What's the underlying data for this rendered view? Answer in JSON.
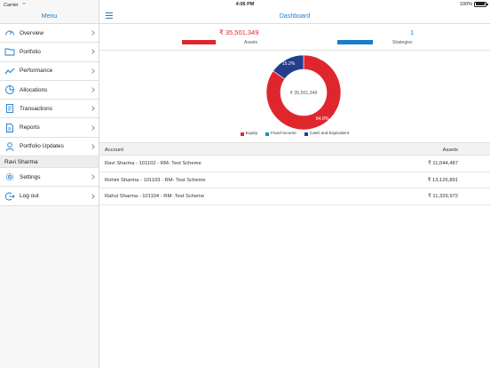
{
  "status": {
    "carrier": "Carrier",
    "time": "4:06 PM",
    "battery": "100%",
    "battery_level": 1.0
  },
  "sidebar": {
    "title": "Menu",
    "items": [
      {
        "label": "Overview",
        "icon": "gauge-icon"
      },
      {
        "label": "Portfolio",
        "icon": "folder-icon"
      },
      {
        "label": "Performance",
        "icon": "trend-line-icon"
      },
      {
        "label": "Allocations",
        "icon": "pie-chart-icon"
      },
      {
        "label": "Transactions",
        "icon": "document-icon"
      },
      {
        "label": "Reports",
        "icon": "report-icon"
      },
      {
        "label": "Portfolio Updates",
        "icon": "person-icon"
      }
    ],
    "section_title": "Ravi Sharma",
    "user_items": [
      {
        "label": "Settings",
        "icon": "gear-icon"
      },
      {
        "label": "Log out",
        "icon": "logout-icon"
      }
    ]
  },
  "header": {
    "title": "Dashboard"
  },
  "summary": {
    "assets_value": "₹ 35,501,349",
    "assets_label": "Assets",
    "strategies_value": "1",
    "strategies_label": "Strategies"
  },
  "colors": {
    "accent": "#1a7ccf",
    "equity": "#e0262d",
    "fixed_income": "#1a8fc9",
    "cash": "#233f8c"
  },
  "chart_data": {
    "type": "pie",
    "center_label": "₹ 35,501,349",
    "slices": [
      {
        "name": "Equity",
        "value": 84.8,
        "label": "84.8%"
      },
      {
        "name": "Fixed Income",
        "value": 0.0,
        "label": ""
      },
      {
        "name": "Cash and Equivalent",
        "value": 15.2,
        "label": "15.2%"
      }
    ],
    "legend": [
      "Equity",
      "Fixed Income",
      "Cash and Equivalent"
    ],
    "legend_position": "bottom"
  },
  "table": {
    "headers": {
      "account": "Account",
      "assets": "Assets"
    },
    "rows": [
      {
        "account": "Ravi Sharma - 101102 - RM- Test Scheme",
        "assets": "₹ 11,044,487"
      },
      {
        "account": "Rohini Sharma - 101103 - RM- Test Scheme",
        "assets": "₹ 13,126,891"
      },
      {
        "account": "Rahul Sharma - 101104 - RM- Test Scheme",
        "assets": "₹ 11,329,972"
      }
    ]
  }
}
